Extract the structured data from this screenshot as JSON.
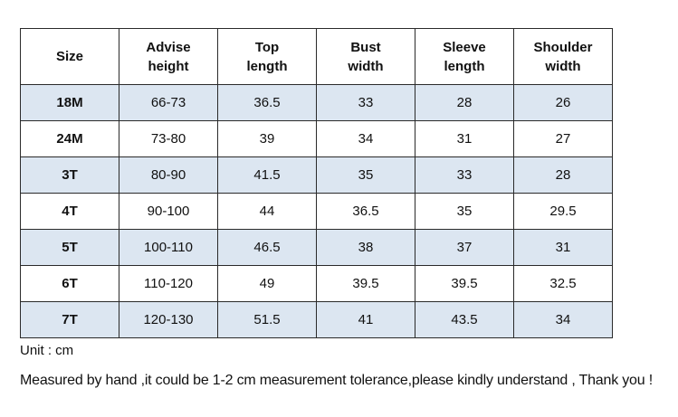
{
  "table": {
    "header": [
      "Size",
      "Advise height",
      "Top length",
      "Bust width",
      "Sleeve length",
      "Shoulder width"
    ],
    "rows": [
      [
        "18M",
        "66-73",
        "36.5",
        "33",
        "28",
        "26"
      ],
      [
        "24M",
        "73-80",
        "39",
        "34",
        "31",
        "27"
      ],
      [
        "3T",
        "80-90",
        "41.5",
        "35",
        "33",
        "28"
      ],
      [
        "4T",
        "90-100",
        "44",
        "36.5",
        "35",
        "29.5"
      ],
      [
        "5T",
        "100-110",
        "46.5",
        "38",
        "37",
        "31"
      ],
      [
        "6T",
        "110-120",
        "49",
        "39.5",
        "39.5",
        "32.5"
      ],
      [
        "7T",
        "120-130",
        "51.5",
        "41",
        "43.5",
        "34"
      ]
    ]
  },
  "unit": "Unit : cm",
  "remark": "Measured by hand ,it could be 1-2 cm measurement tolerance,please kindly understand , Thank you !"
}
